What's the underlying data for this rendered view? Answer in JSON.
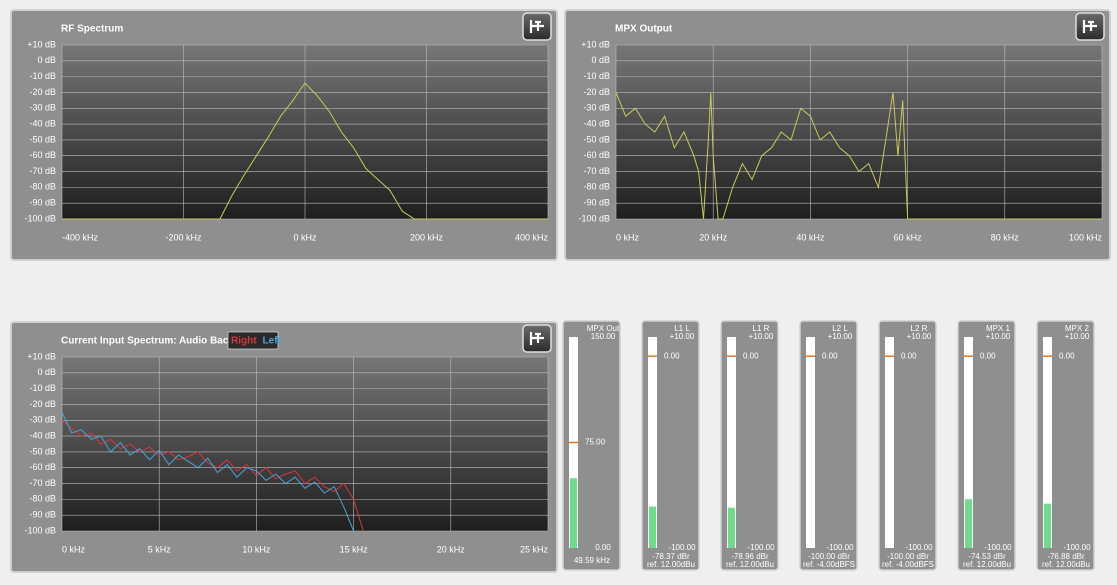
{
  "plots": [
    {
      "title": "RF Spectrum",
      "xlim": [
        -400,
        400
      ],
      "ylim": [
        -100,
        10
      ],
      "xticks": [
        {
          "value": -400,
          "label": "-400 kHz"
        },
        {
          "value": -200,
          "label": "-200 kHz"
        },
        {
          "value": 0,
          "label": "0 kHz"
        },
        {
          "value": 200,
          "label": "200 kHz"
        },
        {
          "value": 400,
          "label": "400 kHz"
        }
      ],
      "yticks": [
        {
          "value": 10,
          "label": "+10 dB"
        },
        {
          "value": 0,
          "label": "0 dB"
        },
        {
          "value": -10,
          "label": "-10 dB"
        },
        {
          "value": -20,
          "label": "-20 dB"
        },
        {
          "value": -30,
          "label": "-30 dB"
        },
        {
          "value": -40,
          "label": "-40 dB"
        },
        {
          "value": -50,
          "label": "-50 dB"
        },
        {
          "value": -60,
          "label": "-60 dB"
        },
        {
          "value": -70,
          "label": "-70 dB"
        },
        {
          "value": -80,
          "label": "-80 dB"
        },
        {
          "value": -90,
          "label": "-90 dB"
        },
        {
          "value": -100,
          "label": "-100 dB"
        }
      ],
      "x": [
        -400,
        -140,
        -120,
        -100,
        -80,
        -60,
        -40,
        -20,
        0,
        20,
        40,
        60,
        80,
        100,
        120,
        140,
        160,
        180,
        400
      ],
      "series": [
        {
          "color": "#c8c85a",
          "values": [
            -100,
            -100,
            -85,
            -72,
            -60,
            -48,
            -35,
            -25,
            -14,
            -22,
            -32,
            -45,
            -55,
            -68,
            -75,
            -82,
            -95,
            -100,
            -100
          ]
        }
      ]
    },
    {
      "title": "MPX Output",
      "xlim": [
        0,
        100
      ],
      "ylim": [
        -100,
        10
      ],
      "xticks": [
        {
          "value": 0,
          "label": "0 kHz"
        },
        {
          "value": 20,
          "label": "20 kHz"
        },
        {
          "value": 40,
          "label": "40 kHz"
        },
        {
          "value": 60,
          "label": "60 kHz"
        },
        {
          "value": 80,
          "label": "80 kHz"
        },
        {
          "value": 100,
          "label": "100 kHz"
        }
      ],
      "yticks": [
        {
          "value": 10,
          "label": "+10 dB"
        },
        {
          "value": 0,
          "label": "0 dB"
        },
        {
          "value": -10,
          "label": "-10 dB"
        },
        {
          "value": -20,
          "label": "-20 dB"
        },
        {
          "value": -30,
          "label": "-30 dB"
        },
        {
          "value": -40,
          "label": "-40 dB"
        },
        {
          "value": -50,
          "label": "-50 dB"
        },
        {
          "value": -60,
          "label": "-60 dB"
        },
        {
          "value": -70,
          "label": "-70 dB"
        },
        {
          "value": -80,
          "label": "-80 dB"
        },
        {
          "value": -90,
          "label": "-90 dB"
        },
        {
          "value": -100,
          "label": "-100 dB"
        }
      ],
      "x": [
        0,
        2,
        4,
        6,
        8,
        10,
        12,
        14,
        16,
        17,
        18,
        19,
        19.5,
        20,
        21,
        22,
        24,
        26,
        28,
        30,
        32,
        34,
        36,
        38,
        40,
        42,
        44,
        46,
        48,
        50,
        52,
        54,
        56,
        57,
        58,
        59,
        60,
        100
      ],
      "series": [
        {
          "color": "#c8c85a",
          "values": [
            -20,
            -35,
            -30,
            -40,
            -45,
            -35,
            -55,
            -45,
            -60,
            -70,
            -100,
            -50,
            -20,
            -60,
            -100,
            -100,
            -80,
            -65,
            -75,
            -60,
            -55,
            -45,
            -50,
            -30,
            -35,
            -50,
            -45,
            -55,
            -60,
            -70,
            -65,
            -80,
            -40,
            -20,
            -60,
            -25,
            -100,
            -100
          ]
        }
      ]
    },
    {
      "title": "Current Input Spectrum: Audio Backup",
      "xlim": [
        0,
        25
      ],
      "ylim": [
        -100,
        10
      ],
      "xticks": [
        {
          "value": 0,
          "label": "0 kHz"
        },
        {
          "value": 5,
          "label": "5 kHz"
        },
        {
          "value": 10,
          "label": "10 kHz"
        },
        {
          "value": 15,
          "label": "15 kHz"
        },
        {
          "value": 20,
          "label": "20 kHz"
        },
        {
          "value": 25,
          "label": "25 kHz"
        }
      ],
      "yticks": [
        {
          "value": 10,
          "label": "+10 dB"
        },
        {
          "value": 0,
          "label": "0 dB"
        },
        {
          "value": -10,
          "label": "-10 dB"
        },
        {
          "value": -20,
          "label": "-20 dB"
        },
        {
          "value": -30,
          "label": "-30 dB"
        },
        {
          "value": -40,
          "label": "-40 dB"
        },
        {
          "value": -50,
          "label": "-50 dB"
        },
        {
          "value": -60,
          "label": "-60 dB"
        },
        {
          "value": -70,
          "label": "-70 dB"
        },
        {
          "value": -80,
          "label": "-80 dB"
        },
        {
          "value": -90,
          "label": "-90 dB"
        },
        {
          "value": -100,
          "label": "-100 dB"
        }
      ],
      "x": [
        0,
        0.5,
        1,
        1.5,
        2,
        2.5,
        3,
        3.5,
        4,
        4.5,
        5,
        5.5,
        6,
        6.5,
        7,
        7.5,
        8,
        8.5,
        9,
        9.5,
        10,
        10.5,
        11,
        11.5,
        12,
        12.5,
        13,
        13.5,
        14,
        14.5,
        15,
        15.5
      ],
      "series": [
        {
          "name": "Right",
          "color": "#d9353f",
          "values": [
            -30,
            -35,
            -40,
            -38,
            -45,
            -42,
            -48,
            -45,
            -50,
            -47,
            -52,
            -50,
            -55,
            -53,
            -50,
            -57,
            -60,
            -55,
            -62,
            -58,
            -65,
            -60,
            -67,
            -64,
            -62,
            -70,
            -66,
            -72,
            -75,
            -70,
            -80,
            -100
          ]
        },
        {
          "name": "Left",
          "color": "#4aa3d6",
          "values": [
            -25,
            -38,
            -36,
            -42,
            -40,
            -50,
            -44,
            -52,
            -48,
            -55,
            -49,
            -58,
            -52,
            -56,
            -60,
            -54,
            -63,
            -58,
            -66,
            -60,
            -62,
            -68,
            -64,
            -70,
            -66,
            -73,
            -69,
            -76,
            -72,
            -85,
            -100,
            null
          ]
        }
      ]
    }
  ],
  "meters": [
    {
      "name": "MPX Out",
      "lim": [
        0,
        150
      ],
      "ticks": [
        {
          "value": 150,
          "label": "150.00"
        },
        {
          "value": 75,
          "label": "75.00"
        },
        {
          "value": 0,
          "label": "0.00"
        }
      ],
      "reading": {
        "value": 49.59,
        "label": "49.59 kHz"
      }
    },
    {
      "name": "L1 L",
      "lim": [
        -100,
        10
      ],
      "ticks": [
        {
          "value": 10,
          "label": "+10.00"
        },
        {
          "value": 0,
          "label": "0.00"
        },
        {
          "value": -100,
          "label": "-100.00"
        }
      ],
      "reading": {
        "value": -78.37,
        "label": "-78.37 dBr"
      },
      "ref": "ref. 12.00dBu"
    },
    {
      "name": "L1 R",
      "lim": [
        -100,
        10
      ],
      "ticks": [
        {
          "value": 10,
          "label": "+10.00"
        },
        {
          "value": 0,
          "label": "0.00"
        },
        {
          "value": -100,
          "label": "-100.00"
        }
      ],
      "reading": {
        "value": -78.96,
        "label": "-78.96 dBr"
      },
      "ref": "ref. 12.00dBu"
    },
    {
      "name": "L2 L",
      "lim": [
        -100,
        10
      ],
      "ticks": [
        {
          "value": 10,
          "label": "+10.00"
        },
        {
          "value": 0,
          "label": "0.00"
        },
        {
          "value": -100,
          "label": "-100.00"
        }
      ],
      "reading": {
        "value": -100,
        "label": "-100.00 dBr"
      },
      "ref": "ref. -4.00dBFS"
    },
    {
      "name": "L2 R",
      "lim": [
        -100,
        10
      ],
      "ticks": [
        {
          "value": 10,
          "label": "+10.00"
        },
        {
          "value": 0,
          "label": "0.00"
        },
        {
          "value": -100,
          "label": "-100.00"
        }
      ],
      "reading": {
        "value": -100,
        "label": "-100.00 dBr"
      },
      "ref": "ref. -4.00dBFS"
    },
    {
      "name": "MPX 1",
      "lim": [
        -100,
        10
      ],
      "ticks": [
        {
          "value": 10,
          "label": "+10.00"
        },
        {
          "value": 0,
          "label": "0.00"
        },
        {
          "value": -100,
          "label": "-100.00"
        }
      ],
      "reading": {
        "value": -74.53,
        "label": "-74.53 dBr"
      },
      "ref": "ref. 12.00dBu"
    },
    {
      "name": "MPX 2",
      "lim": [
        -100,
        10
      ],
      "ticks": [
        {
          "value": 10,
          "label": "+10.00"
        },
        {
          "value": 0,
          "label": "0.00"
        },
        {
          "value": -100,
          "label": "-100.00"
        }
      ],
      "reading": {
        "value": -76.88,
        "label": "-76.88 dBr"
      },
      "ref": "ref. 12.00dBu"
    }
  ]
}
